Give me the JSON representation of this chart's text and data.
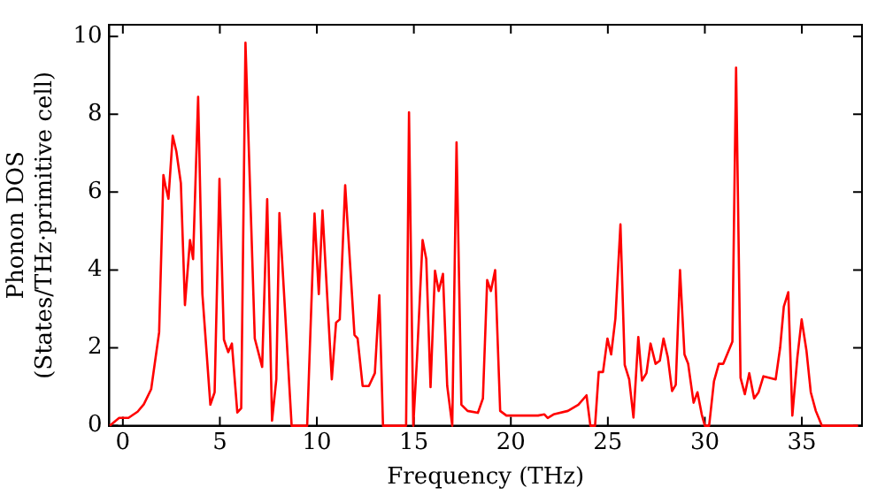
{
  "chart_data": {
    "type": "line",
    "xlabel": "Frequency (THz)",
    "ylabel": "Phonon DOS\n(States/THz·primitive cell)",
    "xlim": [
      -0.7,
      38.1
    ],
    "ylim": [
      0,
      10.3
    ],
    "xticks": [
      0,
      5,
      10,
      15,
      20,
      25,
      30,
      35
    ],
    "yticks": [
      0,
      2,
      4,
      6,
      8,
      10
    ],
    "grid": false,
    "legend": false,
    "marker": "none",
    "line_style": "solid",
    "series": [
      {
        "color": "#ff0000",
        "x": [
          -0.67,
          -0.19,
          0.29,
          0.76,
          1.08,
          1.46,
          1.87,
          2.09,
          2.19,
          2.35,
          2.57,
          2.76,
          2.99,
          3.2,
          3.46,
          3.62,
          3.88,
          4.1,
          4.51,
          4.73,
          4.98,
          5.21,
          5.43,
          5.62,
          5.9,
          6.1,
          6.32,
          6.8,
          7.18,
          7.44,
          7.69,
          7.91,
          8.07,
          8.7,
          9.5,
          9.88,
          10.1,
          10.29,
          10.77,
          10.99,
          11.18,
          11.46,
          11.94,
          12.1,
          12.36,
          12.68,
          12.99,
          13.22,
          13.41,
          14.6,
          14.75,
          14.97,
          15.16,
          15.45,
          15.64,
          15.86,
          16.09,
          16.28,
          16.5,
          16.72,
          16.98,
          17.2,
          17.45,
          17.77,
          18.3,
          18.56,
          18.78,
          18.97,
          19.19,
          19.45,
          19.77,
          21.4,
          21.73,
          21.9,
          22.2,
          22.94,
          23.48,
          23.9,
          24.1,
          24.34,
          24.53,
          24.75,
          24.98,
          25.17,
          25.39,
          25.65,
          25.87,
          26.1,
          26.32,
          26.57,
          26.76,
          26.99,
          27.2,
          27.46,
          27.68,
          27.87,
          28.09,
          28.31,
          28.5,
          28.72,
          28.95,
          29.14,
          29.42,
          29.62,
          29.84,
          30,
          30.22,
          30.47,
          30.72,
          30.95,
          31.42,
          31.61,
          31.84,
          32.06,
          32.29,
          32.54,
          32.77,
          33.02,
          33.65,
          33.88,
          34.07,
          34.3,
          34.51,
          34.77,
          34.99,
          35.24,
          35.46,
          35.72,
          36.03,
          37.9
        ],
        "values": [
          0,
          0.2,
          0.2,
          0.36,
          0.55,
          0.94,
          2.4,
          6.44,
          6.18,
          5.83,
          7.45,
          7.04,
          6.23,
          3.1,
          4.77,
          4.28,
          8.45,
          3.38,
          0.54,
          0.86,
          6.34,
          2.21,
          1.89,
          2.11,
          0.34,
          0.45,
          9.84,
          2.24,
          1.51,
          5.82,
          0.13,
          1.19,
          5.46,
          0,
          0,
          5.45,
          3.38,
          5.53,
          1.19,
          2.65,
          2.73,
          6.18,
          2.33,
          2.24,
          1.02,
          1.02,
          1.35,
          3.35,
          0,
          0,
          8.05,
          0,
          1.71,
          4.77,
          4.28,
          0.99,
          3.98,
          3.46,
          3.9,
          1.02,
          0,
          7.28,
          0.54,
          0.38,
          0.33,
          0.7,
          3.74,
          3.46,
          4.0,
          0.38,
          0.26,
          0.26,
          0.29,
          0.2,
          0.29,
          0.38,
          0.54,
          0.78,
          0,
          0,
          1.38,
          1.38,
          2.24,
          1.83,
          2.76,
          5.17,
          1.56,
          1.19,
          0.21,
          2.28,
          1.16,
          1.35,
          2.11,
          1.59,
          1.67,
          2.24,
          1.76,
          0.89,
          1.05,
          4.0,
          1.83,
          1.59,
          0.59,
          0.86,
          0.29,
          0,
          0,
          1.14,
          1.59,
          1.59,
          2.16,
          9.2,
          1.23,
          0.81,
          1.35,
          0.7,
          0.86,
          1.27,
          1.19,
          2.0,
          3.06,
          3.43,
          0.26,
          1.76,
          2.73,
          1.92,
          0.86,
          0.38,
          0,
          0
        ]
      }
    ]
  }
}
